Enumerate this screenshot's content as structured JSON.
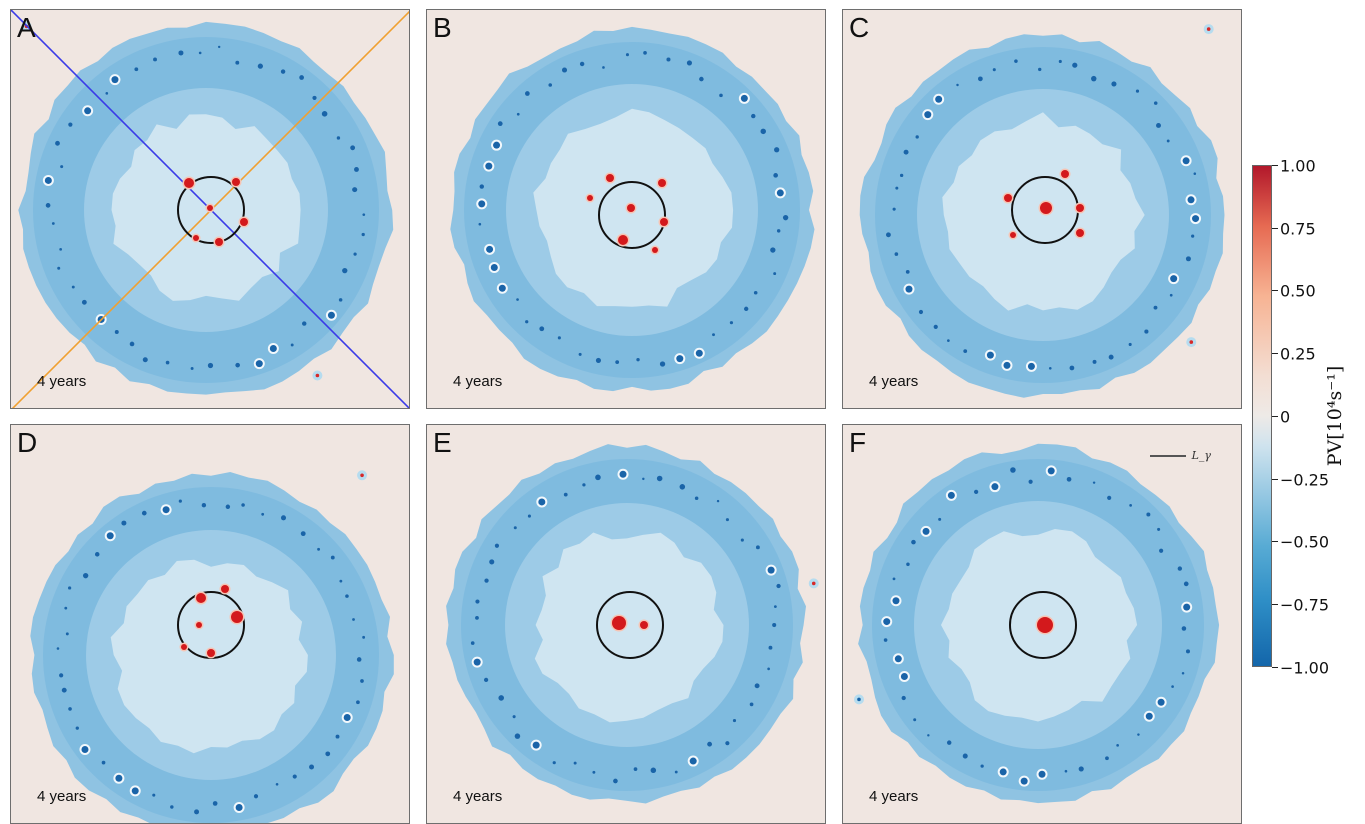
{
  "panels": [
    {
      "label": "A",
      "time": "4 years"
    },
    {
      "label": "B",
      "time": "4 years"
    },
    {
      "label": "C",
      "time": "4 years"
    },
    {
      "label": "D",
      "time": "4 years"
    },
    {
      "label": "E",
      "time": "4 years"
    },
    {
      "label": "F",
      "time": "4 years"
    }
  ],
  "scale_bar_label": "L_γ",
  "colorbar": {
    "title": "PV[10⁴s⁻¹]",
    "ticks": [
      "1.00",
      "0.75",
      "0.50",
      "0.25",
      "0",
      "−0.25",
      "−0.50",
      "−0.75",
      "−1.00"
    ],
    "colors": {
      "max": "#b2182b",
      "zero": "#eeeae7",
      "min": "#1466aa"
    }
  },
  "diagonal_lines": {
    "blue": "#3a3ae8",
    "orange": "#f0a030"
  }
}
